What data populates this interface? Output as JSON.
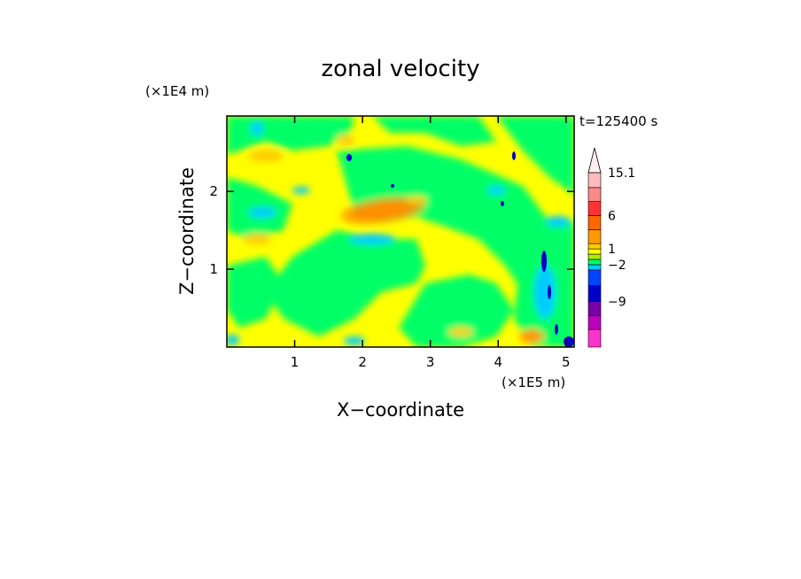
{
  "chart_data": {
    "type": "heatmap",
    "title": "zonal velocity",
    "time_label": "t=125400 s",
    "xlabel": "X−coordinate",
    "ylabel": "Z−coordinate",
    "x_scale_label": "(×1E5 m)",
    "y_scale_label": "(×1E4 m)",
    "xlim": [
      0,
      5.12
    ],
    "ylim": [
      0,
      2.97
    ],
    "x_ticks": [
      {
        "value": 1,
        "label": "1"
      },
      {
        "value": 2,
        "label": "2"
      },
      {
        "value": 3,
        "label": "3"
      },
      {
        "value": 4,
        "label": "4"
      },
      {
        "value": 5,
        "label": "5"
      }
    ],
    "y_ticks": [
      {
        "value": 1,
        "label": "1"
      },
      {
        "value": 2,
        "label": "2"
      }
    ],
    "colorbar": {
      "levels": [
        -15,
        -12,
        -9,
        -6,
        -4,
        -2,
        -1,
        0,
        1,
        2,
        4,
        6,
        9,
        12,
        15.1
      ],
      "colors": [
        "#ff33cc",
        "#bb00bb",
        "#7700aa",
        "#0000cc",
        "#0044ff",
        "#00ccff",
        "#00ff66",
        "#aaee00",
        "#ffff00",
        "#ffcc00",
        "#ff9900",
        "#ff6600",
        "#ff3333",
        "#ff8888",
        "#ffbbbb",
        "#ffeeee"
      ],
      "labels": [
        {
          "value": 15.1,
          "label": "15.1"
        },
        {
          "value": 6,
          "label": "6"
        },
        {
          "value": 1,
          "label": "1"
        },
        {
          "value": -2,
          "label": "−2"
        },
        {
          "value": -9,
          "label": "−9"
        }
      ]
    }
  }
}
